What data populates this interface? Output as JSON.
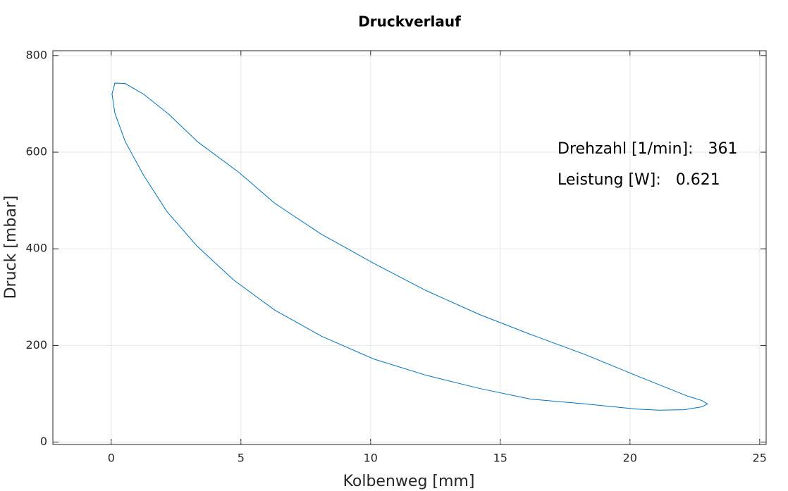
{
  "chart_data": {
    "type": "line",
    "title": "Druckverlauf",
    "xlabel": "Kolbenweg [mm]",
    "ylabel": "Druck [mbar]",
    "x": [
      0.03,
      0.14,
      0.54,
      1.25,
      2.23,
      3.32,
      4.95,
      6.31,
      8.11,
      10.12,
      12.16,
      14.2,
      16.16,
      18.28,
      20.32,
      22.23,
      22.77,
      22.99,
      22.77,
      22.09,
      21.14,
      20.32,
      18.28,
      16.16,
      14.2,
      12.16,
      10.12,
      8.11,
      6.31,
      4.73,
      3.32,
      2.15,
      1.25,
      0.54,
      0.14,
      0.03
    ],
    "series": [
      {
        "color": "#0072bd",
        "values": [
          720,
          743,
          742,
          720,
          678,
          622,
          557,
          494,
          430,
          370,
          313,
          264,
          223,
          181,
          136,
          95,
          86,
          79,
          73,
          67,
          66,
          68,
          79,
          89,
          111,
          138,
          172,
          219,
          273,
          335,
          405,
          477,
          552,
          622,
          681,
          721
        ]
      }
    ],
    "xlim": [
      -2.25,
      25.25
    ],
    "ylim": [
      -5,
      810
    ],
    "xticks": [
      0,
      5,
      10,
      15,
      20,
      25
    ],
    "yticks": [
      0,
      200,
      400,
      600,
      800
    ],
    "grid": true,
    "annotations": [
      "Drehzahl [1/min]:   361",
      "Leistung [W]:   0.621"
    ]
  }
}
